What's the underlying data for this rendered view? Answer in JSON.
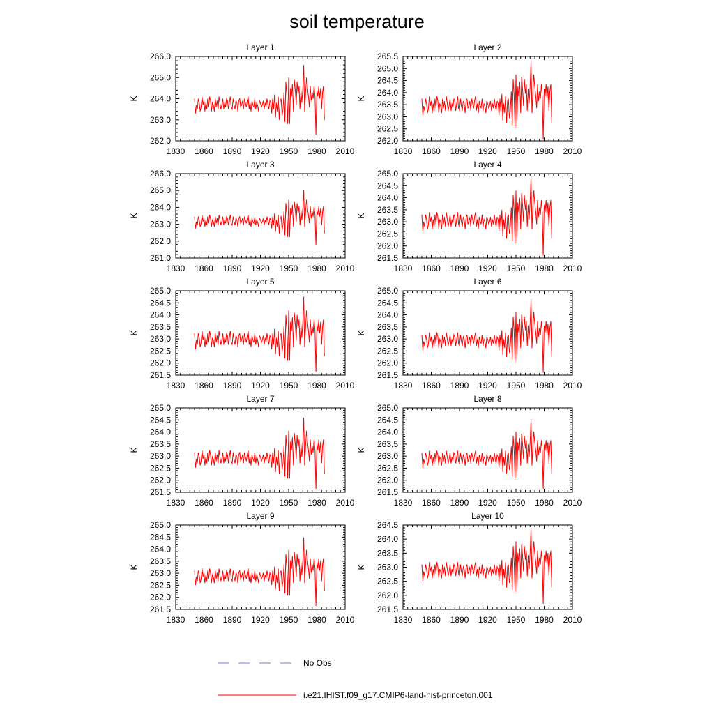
{
  "title": "soil temperature",
  "ylabel": "K",
  "colors": {
    "model": "#ff0000",
    "obs": "#7a7ad0",
    "axis": "#000000"
  },
  "legend": [
    {
      "key": "obs",
      "label": "No Obs",
      "style": "dashed",
      "color": "#7a7ad0"
    },
    {
      "key": "model",
      "label": "i.e21.IHIST.f09_g17.CMIP6-land-hist-princeton.001",
      "style": "solid",
      "color": "#ff0000"
    }
  ],
  "chart_data": [
    {
      "type": "line",
      "title": "Layer 1",
      "ylabel": "K",
      "xlim": [
        1830,
        2010
      ],
      "xticks": [
        1830,
        1860,
        1890,
        1920,
        1950,
        1980,
        2010
      ],
      "ylim": [
        262.0,
        266.0
      ],
      "yticks": [
        "262.0",
        "263.0",
        "264.0",
        "265.0",
        "266.0"
      ],
      "x_start": 1850,
      "x_end": 1988,
      "baseline": 263.7,
      "scale": 1.0,
      "series": [
        {
          "name": "i.e21.IHIST.f09_g17.CMIP6-land-hist-princeton.001",
          "color": "#ff0000"
        }
      ]
    },
    {
      "type": "line",
      "title": "Layer 2",
      "ylabel": "K",
      "xlim": [
        1830,
        2010
      ],
      "xticks": [
        1830,
        1860,
        1890,
        1920,
        1950,
        1980,
        2010
      ],
      "ylim": [
        262.0,
        265.5
      ],
      "yticks": [
        "262.0",
        "262.5",
        "263.0",
        "263.5",
        "264.0",
        "264.5",
        "265.0",
        "265.5"
      ],
      "x_start": 1850,
      "x_end": 1988,
      "baseline": 263.45,
      "scale": 1.0,
      "series": [
        {
          "name": "i.e21.IHIST.f09_g17.CMIP6-land-hist-princeton.001",
          "color": "#ff0000"
        }
      ]
    },
    {
      "type": "line",
      "title": "Layer 3",
      "ylabel": "K",
      "xlim": [
        1830,
        2010
      ],
      "xticks": [
        1830,
        1860,
        1890,
        1920,
        1950,
        1980,
        2010
      ],
      "ylim": [
        261.0,
        266.0
      ],
      "yticks": [
        "261.0",
        "262.0",
        "263.0",
        "264.0",
        "265.0",
        "266.0"
      ],
      "x_start": 1850,
      "x_end": 1988,
      "baseline": 263.15,
      "scale": 1.0,
      "series": [
        {
          "name": "i.e21.IHIST.f09_g17.CMIP6-land-hist-princeton.001",
          "color": "#ff0000"
        }
      ]
    },
    {
      "type": "line",
      "title": "Layer 4",
      "ylabel": "K",
      "xlim": [
        1830,
        2010
      ],
      "xticks": [
        1830,
        1860,
        1890,
        1920,
        1950,
        1980,
        2010
      ],
      "ylim": [
        261.5,
        265.0
      ],
      "yticks": [
        "261.5",
        "262.0",
        "262.5",
        "263.0",
        "263.5",
        "264.0",
        "264.5",
        "265.0"
      ],
      "x_start": 1850,
      "x_end": 1988,
      "baseline": 263.0,
      "scale": 1.0,
      "series": [
        {
          "name": "i.e21.IHIST.f09_g17.CMIP6-land-hist-princeton.001",
          "color": "#ff0000"
        }
      ]
    },
    {
      "type": "line",
      "title": "Layer 5",
      "ylabel": "K",
      "xlim": [
        1830,
        2010
      ],
      "xticks": [
        1830,
        1860,
        1890,
        1920,
        1950,
        1980,
        2010
      ],
      "ylim": [
        261.5,
        265.0
      ],
      "yticks": [
        "261.5",
        "262.0",
        "262.5",
        "263.0",
        "263.5",
        "264.0",
        "264.5",
        "265.0"
      ],
      "x_start": 1850,
      "x_end": 1988,
      "baseline": 262.95,
      "scale": 0.95,
      "series": [
        {
          "name": "i.e21.IHIST.f09_g17.CMIP6-land-hist-princeton.001",
          "color": "#ff0000"
        }
      ]
    },
    {
      "type": "line",
      "title": "Layer 6",
      "ylabel": "K",
      "xlim": [
        1830,
        2010
      ],
      "xticks": [
        1830,
        1860,
        1890,
        1920,
        1950,
        1980,
        2010
      ],
      "ylim": [
        261.5,
        265.0
      ],
      "yticks": [
        "261.5",
        "262.0",
        "262.5",
        "263.0",
        "263.5",
        "264.0",
        "264.5",
        "265.0"
      ],
      "x_start": 1850,
      "x_end": 1988,
      "baseline": 262.9,
      "scale": 0.93,
      "series": [
        {
          "name": "i.e21.IHIST.f09_g17.CMIP6-land-hist-princeton.001",
          "color": "#ff0000"
        }
      ]
    },
    {
      "type": "line",
      "title": "Layer 7",
      "ylabel": "K",
      "xlim": [
        1830,
        2010
      ],
      "xticks": [
        1830,
        1860,
        1890,
        1920,
        1950,
        1980,
        2010
      ],
      "ylim": [
        261.5,
        265.0
      ],
      "yticks": [
        "261.5",
        "262.0",
        "262.5",
        "263.0",
        "263.5",
        "264.0",
        "264.5",
        "265.0"
      ],
      "x_start": 1850,
      "x_end": 1988,
      "baseline": 262.88,
      "scale": 0.9,
      "series": [
        {
          "name": "i.e21.IHIST.f09_g17.CMIP6-land-hist-princeton.001",
          "color": "#ff0000"
        }
      ]
    },
    {
      "type": "line",
      "title": "Layer 8",
      "ylabel": "K",
      "xlim": [
        1830,
        2010
      ],
      "xticks": [
        1830,
        1860,
        1890,
        1920,
        1950,
        1980,
        2010
      ],
      "ylim": [
        261.5,
        265.0
      ],
      "yticks": [
        "261.5",
        "262.0",
        "262.5",
        "263.0",
        "263.5",
        "264.0",
        "264.5",
        "265.0"
      ],
      "x_start": 1850,
      "x_end": 1988,
      "baseline": 262.87,
      "scale": 0.88,
      "series": [
        {
          "name": "i.e21.IHIST.f09_g17.CMIP6-land-hist-princeton.001",
          "color": "#ff0000"
        }
      ]
    },
    {
      "type": "line",
      "title": "Layer 9",
      "ylabel": "K",
      "xlim": [
        1830,
        2010
      ],
      "xticks": [
        1830,
        1860,
        1890,
        1920,
        1950,
        1980,
        2010
      ],
      "ylim": [
        261.5,
        265.0
      ],
      "yticks": [
        "261.5",
        "262.0",
        "262.5",
        "263.0",
        "263.5",
        "264.0",
        "264.5",
        "265.0"
      ],
      "x_start": 1850,
      "x_end": 1988,
      "baseline": 262.85,
      "scale": 0.86,
      "series": [
        {
          "name": "i.e21.IHIST.f09_g17.CMIP6-land-hist-princeton.001",
          "color": "#ff0000"
        }
      ]
    },
    {
      "type": "line",
      "title": "Layer 10",
      "ylabel": "K",
      "xlim": [
        1830,
        2010
      ],
      "xticks": [
        1830,
        1860,
        1890,
        1920,
        1950,
        1980,
        2010
      ],
      "ylim": [
        261.5,
        264.5
      ],
      "yticks": [
        "261.5",
        "262.0",
        "262.5",
        "263.0",
        "263.5",
        "264.0",
        "264.5"
      ],
      "x_start": 1850,
      "x_end": 1988,
      "baseline": 262.85,
      "scale": 0.82,
      "series": [
        {
          "name": "i.e21.IHIST.f09_g17.CMIP6-land-hist-princeton.001",
          "color": "#ff0000"
        }
      ]
    }
  ]
}
